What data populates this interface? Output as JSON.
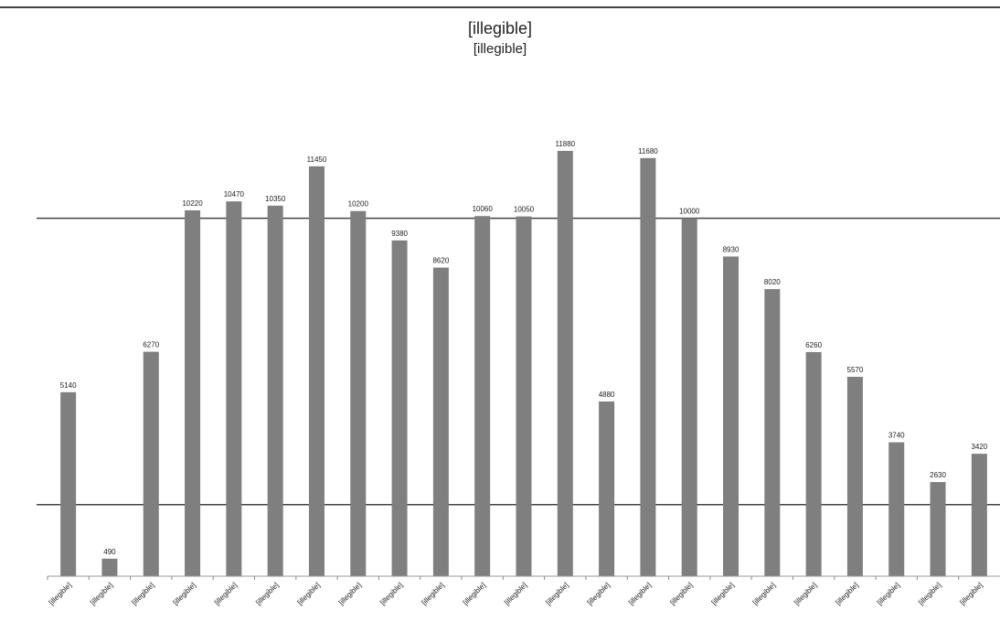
{
  "chart_data": {
    "type": "bar",
    "title": "[illegible]",
    "subtitle": "[illegible]",
    "xlabel": "",
    "ylabel": "",
    "legend": "none",
    "ylim": [
      0,
      14000
    ],
    "gridlines": [
      2000,
      10000
    ],
    "categories": [
      "[illegible]",
      "[illegible]",
      "[illegible]",
      "[illegible]",
      "[illegible]",
      "[illegible]",
      "[illegible]",
      "[illegible]",
      "[illegible]",
      "[illegible]",
      "[illegible]",
      "[illegible]",
      "[illegible]",
      "[illegible]",
      "[illegible]",
      "[illegible]",
      "[illegible]",
      "[illegible]",
      "[illegible]",
      "[illegible]",
      "[illegible]",
      "[illegible]",
      "[illegible]"
    ],
    "series": [
      {
        "values": [
          5140,
          490,
          6270,
          10220,
          10470,
          10350,
          11450,
          10200,
          9380,
          8620,
          10060,
          10050,
          11880,
          4880,
          11680,
          10000,
          8930,
          8020,
          6260,
          5570,
          3740,
          2630,
          3420
        ]
      }
    ],
    "bar_color": "#7f7f7f",
    "grid_color": "#444444"
  }
}
